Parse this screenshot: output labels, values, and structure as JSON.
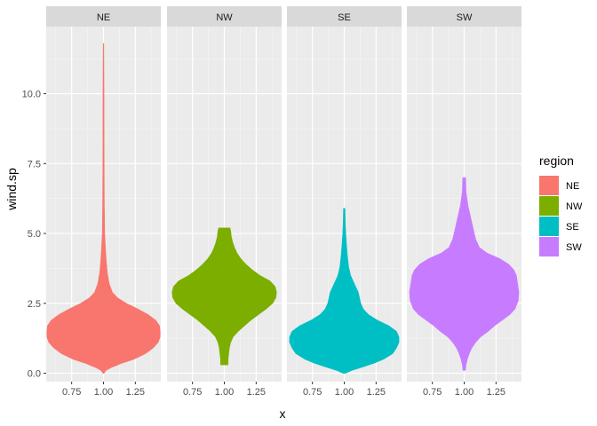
{
  "chart_data": {
    "type": "violin",
    "title": "",
    "xlabel": "x",
    "ylabel": "wind.sp",
    "facet_by": "region",
    "x_ticks": [
      "0.75",
      "1.00",
      "1.25"
    ],
    "x_tick_values": [
      0.75,
      1.0,
      1.25
    ],
    "x_range": [
      0.55,
      1.45
    ],
    "y_ticks": [
      "0.0",
      "2.5",
      "5.0",
      "7.5",
      "10.0"
    ],
    "y_tick_values": [
      0.0,
      2.5,
      5.0,
      7.5,
      10.0
    ],
    "ylim": [
      -0.3,
      12.4
    ],
    "violin_center_x": 1.0,
    "grid": true,
    "legend": {
      "title": "region",
      "position": "right"
    },
    "series": [
      {
        "name": "NE",
        "color": "#F8766D",
        "min": 0.0,
        "max": 11.8,
        "profile": [
          [
            0.0,
            0.005
          ],
          [
            0.1,
            0.02
          ],
          [
            0.2,
            0.06
          ],
          [
            0.35,
            0.14
          ],
          [
            0.5,
            0.24
          ],
          [
            0.7,
            0.33
          ],
          [
            0.9,
            0.39
          ],
          [
            1.1,
            0.43
          ],
          [
            1.3,
            0.445
          ],
          [
            1.5,
            0.445
          ],
          [
            1.7,
            0.44
          ],
          [
            1.9,
            0.41
          ],
          [
            2.1,
            0.35
          ],
          [
            2.3,
            0.27
          ],
          [
            2.5,
            0.18
          ],
          [
            2.7,
            0.11
          ],
          [
            2.9,
            0.07
          ],
          [
            3.2,
            0.045
          ],
          [
            3.6,
            0.03
          ],
          [
            4.0,
            0.022
          ],
          [
            4.5,
            0.015
          ],
          [
            5.0,
            0.01
          ],
          [
            6.0,
            0.007
          ],
          [
            8.0,
            0.005
          ],
          [
            10.0,
            0.004
          ],
          [
            11.8,
            0.003
          ]
        ]
      },
      {
        "name": "NW",
        "color": "#7CAE00",
        "min": 0.3,
        "max": 5.2,
        "profile": [
          [
            0.3,
            0.03
          ],
          [
            0.5,
            0.03
          ],
          [
            0.7,
            0.035
          ],
          [
            0.9,
            0.04
          ],
          [
            1.1,
            0.05
          ],
          [
            1.3,
            0.07
          ],
          [
            1.5,
            0.11
          ],
          [
            1.7,
            0.16
          ],
          [
            1.9,
            0.21
          ],
          [
            2.1,
            0.27
          ],
          [
            2.3,
            0.33
          ],
          [
            2.5,
            0.38
          ],
          [
            2.7,
            0.405
          ],
          [
            2.9,
            0.41
          ],
          [
            3.1,
            0.4
          ],
          [
            3.3,
            0.36
          ],
          [
            3.5,
            0.28
          ],
          [
            3.7,
            0.22
          ],
          [
            3.9,
            0.17
          ],
          [
            4.1,
            0.13
          ],
          [
            4.3,
            0.1
          ],
          [
            4.5,
            0.08
          ],
          [
            4.7,
            0.065
          ],
          [
            4.9,
            0.055
          ],
          [
            5.1,
            0.05
          ],
          [
            5.2,
            0.045
          ]
        ]
      },
      {
        "name": "SE",
        "color": "#00BFC4",
        "min": 0.0,
        "max": 5.9,
        "profile": [
          [
            0.0,
            0.01
          ],
          [
            0.1,
            0.06
          ],
          [
            0.2,
            0.13
          ],
          [
            0.35,
            0.23
          ],
          [
            0.5,
            0.31
          ],
          [
            0.7,
            0.38
          ],
          [
            0.9,
            0.41
          ],
          [
            1.1,
            0.43
          ],
          [
            1.3,
            0.43
          ],
          [
            1.5,
            0.41
          ],
          [
            1.7,
            0.35
          ],
          [
            1.9,
            0.26
          ],
          [
            2.1,
            0.19
          ],
          [
            2.3,
            0.15
          ],
          [
            2.5,
            0.13
          ],
          [
            2.7,
            0.12
          ],
          [
            2.9,
            0.11
          ],
          [
            3.1,
            0.09
          ],
          [
            3.3,
            0.07
          ],
          [
            3.5,
            0.05
          ],
          [
            3.8,
            0.035
          ],
          [
            4.2,
            0.025
          ],
          [
            4.6,
            0.018
          ],
          [
            5.0,
            0.012
          ],
          [
            5.5,
            0.008
          ],
          [
            5.9,
            0.006
          ]
        ]
      },
      {
        "name": "SW",
        "color": "#C77CFF",
        "min": 0.1,
        "max": 7.0,
        "profile": [
          [
            0.1,
            0.01
          ],
          [
            0.3,
            0.015
          ],
          [
            0.5,
            0.025
          ],
          [
            0.7,
            0.04
          ],
          [
            0.9,
            0.06
          ],
          [
            1.1,
            0.09
          ],
          [
            1.3,
            0.13
          ],
          [
            1.5,
            0.19
          ],
          [
            1.7,
            0.24
          ],
          [
            1.9,
            0.3
          ],
          [
            2.1,
            0.36
          ],
          [
            2.3,
            0.4
          ],
          [
            2.6,
            0.425
          ],
          [
            2.9,
            0.43
          ],
          [
            3.2,
            0.42
          ],
          [
            3.5,
            0.41
          ],
          [
            3.7,
            0.39
          ],
          [
            3.9,
            0.35
          ],
          [
            4.1,
            0.28
          ],
          [
            4.3,
            0.18
          ],
          [
            4.5,
            0.12
          ],
          [
            4.8,
            0.09
          ],
          [
            5.2,
            0.07
          ],
          [
            5.6,
            0.05
          ],
          [
            6.0,
            0.03
          ],
          [
            6.5,
            0.015
          ],
          [
            7.0,
            0.012
          ]
        ]
      }
    ]
  }
}
